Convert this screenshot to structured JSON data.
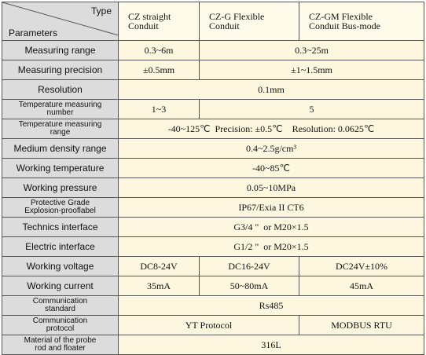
{
  "header": {
    "type_label": "Type",
    "parameters_label": "Parameters",
    "columns": [
      "CZ straight\nConduit",
      "CZ-G  Flexible\nConduit",
      "CZ-GM  Flexible\nConduit Bus-mode"
    ]
  },
  "rows": [
    {
      "label": "Measuring range",
      "cells": [
        "0.3~6m",
        "0.3~25m"
      ]
    },
    {
      "label": "Measuring precision",
      "cells": [
        "±0.5mm",
        "±1~1.5mm"
      ]
    },
    {
      "label": "Resolution",
      "cells": [
        "0.1mm"
      ]
    },
    {
      "label": "Temperature measuring\nnumber",
      "cells": [
        "1~3",
        "5"
      ]
    },
    {
      "label": "Temperature measuring\nrange",
      "cells": [
        "-40~125℃  Precision: ±0.5℃    Resolution: 0.0625℃"
      ]
    },
    {
      "label": "Medium density range",
      "cells": [
        "0.4~2.5g/cm³"
      ]
    },
    {
      "label": "Working temperature",
      "cells": [
        "-40~85℃"
      ]
    },
    {
      "label": "Working pressure",
      "cells": [
        "0.05~10MPa"
      ]
    },
    {
      "label": "Protective Grade\nExplosion-prooflabel",
      "cells": [
        "IP67/Exia II CT6"
      ]
    },
    {
      "label": "Technics interface",
      "cells": [
        "G3/4 \"  or M20×1.5"
      ]
    },
    {
      "label": "Electric interface",
      "cells": [
        "G1/2 \"  or M20×1.5"
      ]
    },
    {
      "label": "Working voltage",
      "cells": [
        "DC8-24V",
        "DC16-24V",
        "DC24V±10%"
      ]
    },
    {
      "label": "Working current",
      "cells": [
        "35mA",
        "50~80mA",
        "45mA"
      ]
    },
    {
      "label": "Communication\nstandard",
      "cells": [
        "Rs485"
      ]
    },
    {
      "label": "Communication\nprotocol",
      "cells": [
        "YT Protocol",
        "MODBUS RTU"
      ]
    },
    {
      "label": "Material of the probe\nrod and floater",
      "cells": [
        "316L"
      ]
    }
  ]
}
